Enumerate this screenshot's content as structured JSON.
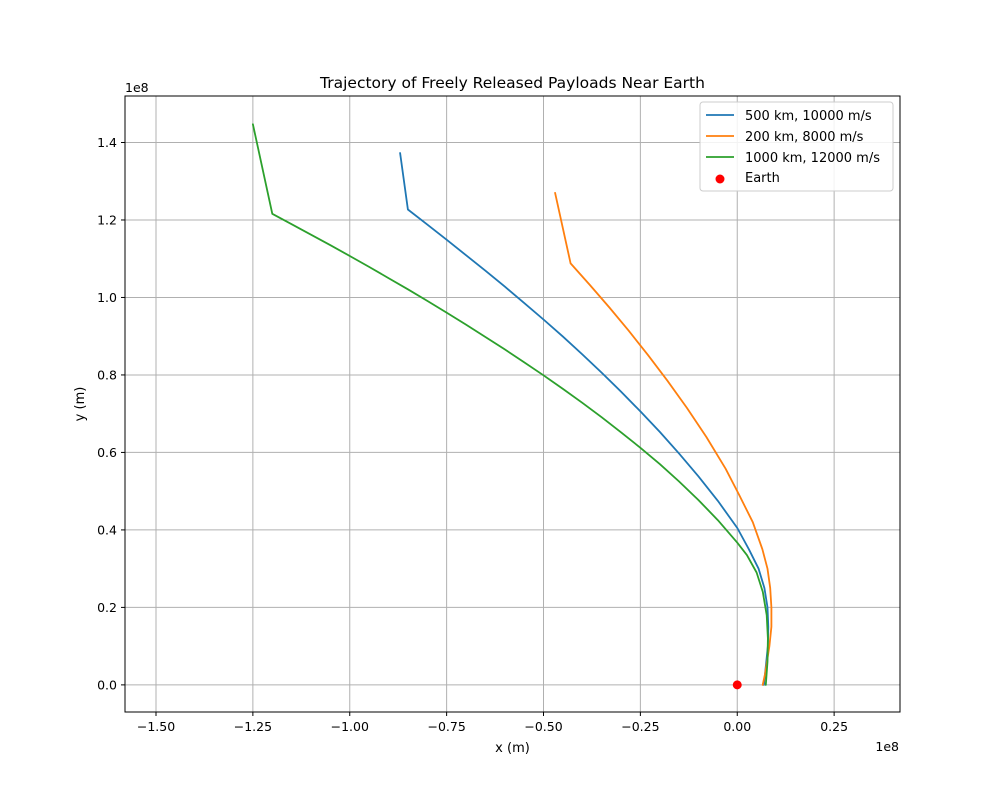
{
  "chart_data": {
    "type": "line",
    "title": "Trajectory of Freely Released Payloads Near Earth",
    "xlabel": "x (m)",
    "ylabel": "y (m)",
    "x_offset_label": "1e8",
    "y_offset_label": "1e8",
    "xlim": [
      -1.58,
      0.42
    ],
    "ylim": [
      -0.07,
      1.52
    ],
    "xticks": [
      -1.5,
      -1.25,
      -1.0,
      -0.75,
      -0.5,
      -0.25,
      0.0,
      0.25
    ],
    "xtick_labels": [
      "−1.50",
      "−1.25",
      "−1.00",
      "−0.75",
      "−0.50",
      "−0.25",
      "0.00",
      "0.25"
    ],
    "yticks": [
      0.0,
      0.2,
      0.4,
      0.6,
      0.8,
      1.0,
      1.2,
      1.4
    ],
    "ytick_labels": [
      "0.0",
      "0.2",
      "0.4",
      "0.6",
      "0.8",
      "1.0",
      "1.2",
      "1.4"
    ],
    "grid": true,
    "legend_position": "top-right",
    "series": [
      {
        "name": "500 km, 10000 m/s",
        "color": "#1f77b4",
        "x": [
          0.0687,
          0.074,
          0.079,
          0.08,
          0.078,
          0.07,
          0.055,
          0.03,
          0.0,
          -0.05,
          -0.1,
          -0.15,
          -0.2,
          -0.25,
          -0.3,
          -0.35,
          -0.4,
          -0.45,
          -0.5,
          -0.55,
          -0.6,
          -0.65,
          -0.7,
          -0.75,
          -0.8,
          -0.85,
          -0.87
        ],
        "y": [
          0.0,
          0.05,
          0.1,
          0.15,
          0.2,
          0.25,
          0.3,
          0.35,
          0.405,
          0.475,
          0.538,
          0.597,
          0.653,
          0.706,
          0.757,
          0.806,
          0.853,
          0.899,
          0.943,
          0.986,
          1.028,
          1.069,
          1.109,
          1.149,
          1.188,
          1.227,
          1.373
        ]
      },
      {
        "name": "200 km, 8000 m/s",
        "color": "#ff7f0e",
        "x": [
          0.0657,
          0.072,
          0.083,
          0.088,
          0.088,
          0.085,
          0.078,
          0.065,
          0.04,
          0.005,
          -0.03,
          -0.08,
          -0.13,
          -0.18,
          -0.23,
          -0.28,
          -0.33,
          -0.38,
          -0.43,
          -0.47
        ],
        "y": [
          0.0,
          0.03,
          0.1,
          0.15,
          0.2,
          0.25,
          0.3,
          0.35,
          0.42,
          0.49,
          0.558,
          0.64,
          0.715,
          0.785,
          0.851,
          0.914,
          0.974,
          1.032,
          1.088,
          1.27
        ]
      },
      {
        "name": "1000 km, 12000 m/s",
        "color": "#2ca02c",
        "x": [
          0.0737,
          0.078,
          0.079,
          0.076,
          0.066,
          0.05,
          0.025,
          0.0,
          -0.05,
          -0.1,
          -0.15,
          -0.2,
          -0.25,
          -0.3,
          -0.35,
          -0.4,
          -0.45,
          -0.5,
          -0.55,
          -0.6,
          -0.65,
          -0.7,
          -0.75,
          -0.8,
          -0.85,
          -0.9,
          -0.95,
          -1.0,
          -1.05,
          -1.1,
          -1.15,
          -1.2,
          -1.25
        ],
        "y": [
          0.0,
          0.06,
          0.12,
          0.18,
          0.24,
          0.29,
          0.335,
          0.367,
          0.425,
          0.477,
          0.525,
          0.57,
          0.612,
          0.652,
          0.691,
          0.728,
          0.764,
          0.799,
          0.833,
          0.866,
          0.898,
          0.93,
          0.961,
          0.991,
          1.021,
          1.05,
          1.079,
          1.107,
          1.135,
          1.162,
          1.189,
          1.216,
          1.447
        ]
      }
    ],
    "points": [
      {
        "name": "Earth",
        "color": "#ff0000",
        "x": 0.0,
        "y": 0.0
      }
    ]
  }
}
